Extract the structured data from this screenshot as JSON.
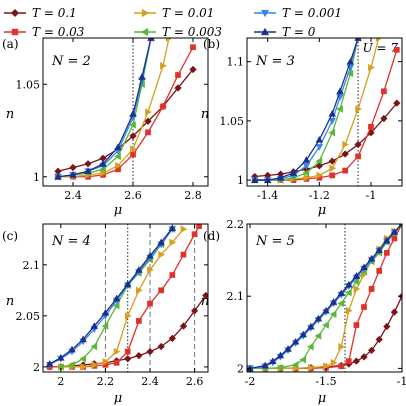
{
  "legend": [
    {
      "label": "T = 0.1",
      "color": "#7a1418",
      "marker": "diamond"
    },
    {
      "label": "T = 0.01",
      "color": "#d4a01e",
      "marker": "triangle-right"
    },
    {
      "label": "T = 0.001",
      "color": "#3a86e8",
      "marker": "triangle-down"
    },
    {
      "label": "T = 0.03",
      "color": "#e0322b",
      "marker": "square"
    },
    {
      "label": "T = 0.003",
      "color": "#58b83a",
      "marker": "triangle-left"
    },
    {
      "label": "T = 0",
      "color": "#1c2f8c",
      "marker": "triangle-up"
    }
  ],
  "legend_extra": "U = 7",
  "chart_data": [
    {
      "type": "line",
      "panel": "(a)",
      "annotation": "N = 2",
      "xlabel": "μ",
      "ylabel": "n",
      "xlim": [
        2.3,
        2.85
      ],
      "ylim": [
        0.995,
        1.075
      ],
      "xticks": [
        2.4,
        2.6,
        2.8
      ],
      "xticklabels": [
        "2.4",
        "2.6",
        "2.8"
      ],
      "yticks": [
        1.0,
        1.05
      ],
      "yticklabels": [
        "1",
        "1.05"
      ],
      "vlines": [
        {
          "x": 2.6,
          "style": "dotted"
        }
      ],
      "series": [
        {
          "name": "T = 0.1",
          "x": [
            2.35,
            2.4,
            2.45,
            2.5,
            2.55,
            2.6,
            2.65,
            2.7,
            2.75,
            2.8
          ],
          "y": [
            1.003,
            1.005,
            1.007,
            1.01,
            1.015,
            1.022,
            1.03,
            1.038,
            1.048,
            1.058
          ]
        },
        {
          "name": "T = 0.03",
          "x": [
            2.35,
            2.4,
            2.45,
            2.5,
            2.55,
            2.6,
            2.65,
            2.7,
            2.75,
            2.8
          ],
          "y": [
            1.0,
            1.0,
            1.0,
            1.001,
            1.004,
            1.012,
            1.024,
            1.038,
            1.055,
            1.07
          ]
        },
        {
          "name": "T = 0.01",
          "x": [
            2.35,
            2.4,
            2.45,
            2.5,
            2.55,
            2.6,
            2.65,
            2.7,
            2.72
          ],
          "y": [
            1.0,
            1.0,
            1.001,
            1.002,
            1.006,
            1.015,
            1.035,
            1.06,
            1.075
          ]
        },
        {
          "name": "T = 0.003",
          "x": [
            2.35,
            2.4,
            2.45,
            2.5,
            2.55,
            2.6,
            2.63,
            2.66
          ],
          "y": [
            1.0,
            1.001,
            1.002,
            1.004,
            1.011,
            1.028,
            1.05,
            1.075
          ]
        },
        {
          "name": "T = 0.001",
          "x": [
            2.35,
            2.4,
            2.45,
            2.5,
            2.55,
            2.6,
            2.63,
            2.66
          ],
          "y": [
            1.0,
            1.001,
            1.003,
            1.006,
            1.014,
            1.032,
            1.052,
            1.075
          ]
        },
        {
          "name": "T = 0",
          "x": [
            2.35,
            2.4,
            2.45,
            2.5,
            2.55,
            2.6,
            2.63,
            2.66
          ],
          "y": [
            1.0,
            1.001,
            1.003,
            1.007,
            1.016,
            1.034,
            1.054,
            1.075
          ]
        }
      ]
    },
    {
      "type": "line",
      "panel": "(b)",
      "annotation": "N = 3",
      "xlabel": "μ",
      "ylabel": "n",
      "xlim": [
        -1.48,
        -0.88
      ],
      "ylim": [
        0.995,
        1.12
      ],
      "xticks": [
        -1.4,
        -1.2,
        -1.0
      ],
      "xticklabels": [
        "-1.4",
        "-1.2",
        "-1"
      ],
      "yticks": [
        1.0,
        1.05,
        1.1
      ],
      "yticklabels": [
        "1",
        "1.05",
        "1.1"
      ],
      "vlines": [
        {
          "x": -1.05,
          "style": "dotted"
        }
      ],
      "series": [
        {
          "name": "T = 0.1",
          "x": [
            -1.45,
            -1.4,
            -1.35,
            -1.3,
            -1.25,
            -1.2,
            -1.15,
            -1.1,
            -1.05,
            -1.0,
            -0.95,
            -0.9
          ],
          "y": [
            1.003,
            1.004,
            1.005,
            1.007,
            1.009,
            1.012,
            1.016,
            1.022,
            1.03,
            1.04,
            1.052,
            1.065
          ]
        },
        {
          "name": "T = 0.03",
          "x": [
            -1.45,
            -1.4,
            -1.35,
            -1.3,
            -1.25,
            -1.2,
            -1.15,
            -1.1,
            -1.05,
            -1.0,
            -0.95,
            -0.9
          ],
          "y": [
            1.0,
            1.0,
            1.0,
            1.0,
            1.001,
            1.002,
            1.004,
            1.008,
            1.02,
            1.045,
            1.075,
            1.11
          ]
        },
        {
          "name": "T = 0.01",
          "x": [
            -1.45,
            -1.4,
            -1.35,
            -1.3,
            -1.25,
            -1.2,
            -1.15,
            -1.1,
            -1.05,
            -1.0,
            -0.97
          ],
          "y": [
            1.0,
            1.0,
            1.0,
            1.001,
            1.002,
            1.004,
            1.01,
            1.03,
            1.06,
            1.095,
            1.12
          ]
        },
        {
          "name": "T = 0.003",
          "x": [
            -1.45,
            -1.4,
            -1.35,
            -1.3,
            -1.25,
            -1.2,
            -1.15,
            -1.12,
            -1.08,
            -1.05
          ],
          "y": [
            1.0,
            1.0,
            1.0,
            1.002,
            1.006,
            1.016,
            1.04,
            1.06,
            1.09,
            1.12
          ]
        },
        {
          "name": "T = 0.001",
          "x": [
            -1.45,
            -1.4,
            -1.35,
            -1.3,
            -1.25,
            -1.2,
            -1.15,
            -1.12,
            -1.08,
            -1.05
          ],
          "y": [
            1.0,
            1.0,
            1.001,
            1.004,
            1.012,
            1.028,
            1.05,
            1.07,
            1.095,
            1.12
          ]
        },
        {
          "name": "T = 0",
          "x": [
            -1.45,
            -1.4,
            -1.35,
            -1.3,
            -1.25,
            -1.2,
            -1.15,
            -1.12,
            -1.08,
            -1.05
          ],
          "y": [
            1.0,
            1.0,
            1.002,
            1.006,
            1.017,
            1.034,
            1.056,
            1.075,
            1.1,
            1.12
          ]
        }
      ]
    },
    {
      "type": "line",
      "panel": "(c)",
      "annotation": "N = 4",
      "xlabel": "μ",
      "ylabel": "n",
      "xlim": [
        1.92,
        2.66
      ],
      "ylim": [
        1.995,
        2.14
      ],
      "xticks": [
        2.0,
        2.2,
        2.4,
        2.6
      ],
      "xticklabels": [
        "2",
        "2.2",
        "2.4",
        "2.6"
      ],
      "yticks": [
        2.0,
        2.05,
        2.1
      ],
      "yticklabels": [
        "2",
        "2.05",
        "2.1"
      ],
      "vlines": [
        {
          "x": 2.2,
          "style": "dashed"
        },
        {
          "x": 2.3,
          "style": "dotted"
        },
        {
          "x": 2.4,
          "style": "dashed"
        },
        {
          "x": 2.6,
          "style": "dashed"
        }
      ],
      "series": [
        {
          "name": "T = 0.1",
          "x": [
            1.95,
            2.0,
            2.05,
            2.1,
            2.15,
            2.2,
            2.25,
            2.3,
            2.35,
            2.4,
            2.45,
            2.5,
            2.55,
            2.6,
            2.65
          ],
          "y": [
            2.0,
            2.0,
            2.001,
            2.002,
            2.003,
            2.004,
            2.006,
            2.008,
            2.011,
            2.015,
            2.02,
            2.028,
            2.04,
            2.055,
            2.07
          ]
        },
        {
          "name": "T = 0.03",
          "x": [
            1.95,
            2.0,
            2.05,
            2.1,
            2.15,
            2.2,
            2.25,
            2.3,
            2.35,
            2.4,
            2.45,
            2.5,
            2.55,
            2.6,
            2.62
          ],
          "y": [
            2.0,
            2.0,
            2.0,
            2.0,
            2.001,
            2.002,
            2.004,
            2.015,
            2.045,
            2.062,
            2.075,
            2.09,
            2.11,
            2.13,
            2.138
          ]
        },
        {
          "name": "T = 0.01",
          "x": [
            2.0,
            2.05,
            2.1,
            2.15,
            2.2,
            2.25,
            2.3,
            2.35,
            2.4,
            2.45,
            2.5,
            2.55
          ],
          "y": [
            2.0,
            2.0,
            2.0,
            2.002,
            2.005,
            2.015,
            2.05,
            2.075,
            2.095,
            2.11,
            2.122,
            2.135
          ]
        },
        {
          "name": "T = 0.003",
          "x": [
            2.0,
            2.05,
            2.1,
            2.15,
            2.2,
            2.25,
            2.3,
            2.35,
            2.4,
            2.45,
            2.5
          ],
          "y": [
            2.0,
            2.002,
            2.008,
            2.02,
            2.04,
            2.06,
            2.08,
            2.092,
            2.105,
            2.12,
            2.135
          ]
        },
        {
          "name": "T = 0.001",
          "x": [
            1.95,
            2.0,
            2.05,
            2.1,
            2.15,
            2.2,
            2.25,
            2.3,
            2.35,
            2.4,
            2.45,
            2.5
          ],
          "y": [
            2.002,
            2.008,
            2.015,
            2.025,
            2.037,
            2.05,
            2.065,
            2.08,
            2.093,
            2.107,
            2.12,
            2.135
          ]
        },
        {
          "name": "T = 0",
          "x": [
            1.95,
            2.0,
            2.05,
            2.1,
            2.15,
            2.2,
            2.25,
            2.3,
            2.35,
            2.4,
            2.45,
            2.5
          ],
          "y": [
            2.003,
            2.009,
            2.017,
            2.027,
            2.04,
            2.053,
            2.067,
            2.081,
            2.095,
            2.109,
            2.122,
            2.136
          ]
        }
      ]
    },
    {
      "type": "line",
      "panel": "(d)",
      "annotation": "N = 5",
      "xlabel": "μ",
      "ylabel": "n",
      "xlim": [
        -2.02,
        -1.0
      ],
      "ylim": [
        1.995,
        2.2
      ],
      "xticks": [
        -2.0,
        -1.5,
        -1.0
      ],
      "xticklabels": [
        "-2",
        "-1.5",
        "-1"
      ],
      "yticks": [
        2.0,
        2.1,
        2.2
      ],
      "yticklabels": [
        "2",
        "2.1",
        "2.2"
      ],
      "vlines": [
        {
          "x": -1.375,
          "style": "dotted"
        }
      ],
      "series": [
        {
          "name": "T = 0.1",
          "x": [
            -2.0,
            -1.9,
            -1.8,
            -1.7,
            -1.6,
            -1.5,
            -1.4,
            -1.35,
            -1.3,
            -1.25,
            -1.2,
            -1.15,
            -1.1,
            -1.05,
            -1.0
          ],
          "y": [
            2.0,
            2.0,
            2.0,
            2.0,
            2.001,
            2.002,
            2.004,
            2.006,
            2.01,
            2.016,
            2.025,
            2.04,
            2.058,
            2.078,
            2.1
          ]
        },
        {
          "name": "T = 0.03",
          "x": [
            -2.0,
            -1.9,
            -1.8,
            -1.7,
            -1.6,
            -1.5,
            -1.4,
            -1.35,
            -1.3,
            -1.25,
            -1.2,
            -1.15,
            -1.1,
            -1.05,
            -1.0
          ],
          "y": [
            2.0,
            2.0,
            2.0,
            2.0,
            2.0,
            2.001,
            2.003,
            2.01,
            2.06,
            2.085,
            2.11,
            2.135,
            2.16,
            2.18,
            2.2
          ]
        },
        {
          "name": "T = 0.01",
          "x": [
            -2.0,
            -1.9,
            -1.8,
            -1.7,
            -1.6,
            -1.5,
            -1.45,
            -1.4,
            -1.35,
            -1.3,
            -1.25,
            -1.2,
            -1.15,
            -1.1,
            -1.05,
            -1.0
          ],
          "y": [
            2.0,
            2.0,
            2.0,
            2.0,
            2.001,
            2.003,
            2.008,
            2.03,
            2.08,
            2.11,
            2.13,
            2.15,
            2.165,
            2.18,
            2.19,
            2.2
          ]
        },
        {
          "name": "T = 0.003",
          "x": [
            -2.0,
            -1.9,
            -1.8,
            -1.7,
            -1.65,
            -1.6,
            -1.55,
            -1.5,
            -1.45,
            -1.4,
            -1.35,
            -1.3,
            -1.25,
            -1.2,
            -1.15,
            -1.1,
            -1.05,
            -1.0
          ],
          "y": [
            2.0,
            2.0,
            2.001,
            2.005,
            2.012,
            2.03,
            2.045,
            2.06,
            2.075,
            2.09,
            2.105,
            2.12,
            2.135,
            2.148,
            2.16,
            2.175,
            2.188,
            2.2
          ]
        },
        {
          "name": "T = 0.001",
          "x": [
            -2.0,
            -1.9,
            -1.85,
            -1.8,
            -1.75,
            -1.7,
            -1.65,
            -1.6,
            -1.55,
            -1.5,
            -1.45,
            -1.4,
            -1.35,
            -1.3,
            -1.25,
            -1.2,
            -1.15,
            -1.1,
            -1.05,
            -1.0
          ],
          "y": [
            2.0,
            2.003,
            2.008,
            2.016,
            2.025,
            2.035,
            2.045,
            2.056,
            2.067,
            2.078,
            2.09,
            2.102,
            2.114,
            2.126,
            2.138,
            2.15,
            2.163,
            2.176,
            2.188,
            2.2
          ]
        },
        {
          "name": "T = 0",
          "x": [
            -2.0,
            -1.9,
            -1.85,
            -1.8,
            -1.75,
            -1.7,
            -1.65,
            -1.6,
            -1.55,
            -1.5,
            -1.45,
            -1.4,
            -1.35,
            -1.3,
            -1.25,
            -1.2,
            -1.15,
            -1.1,
            -1.05,
            -1.0
          ],
          "y": [
            2.0,
            2.004,
            2.01,
            2.018,
            2.027,
            2.037,
            2.047,
            2.058,
            2.069,
            2.08,
            2.092,
            2.104,
            2.116,
            2.128,
            2.14,
            2.152,
            2.164,
            2.177,
            2.189,
            2.2
          ]
        }
      ]
    }
  ]
}
